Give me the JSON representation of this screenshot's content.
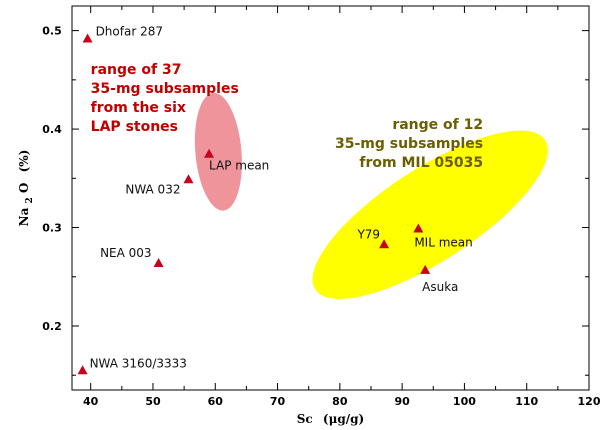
{
  "chart_data": {
    "type": "scatter",
    "xlabel_main": "Sc",
    "xlabel_unit": "(μg/g)",
    "ylabel_parts": [
      "Na",
      "2",
      "O",
      "(%)"
    ],
    "xlim": [
      37,
      120
    ],
    "ylim": [
      0.135,
      0.525
    ],
    "xticks": [
      40,
      50,
      60,
      70,
      80,
      90,
      100,
      110,
      120
    ],
    "yticks": [
      0.2,
      0.3,
      0.4,
      0.5
    ],
    "ytick_labels": [
      "0.2",
      "0.3",
      "0.4",
      "0.5"
    ],
    "marker_color": "#c8001e",
    "points": [
      {
        "label": "Dhofar 287",
        "x": 39.5,
        "y": 0.492
      },
      {
        "label": "LAP mean",
        "x": 59.0,
        "y": 0.375
      },
      {
        "label": "NWA 032",
        "x": 55.7,
        "y": 0.349
      },
      {
        "label": "NEA 003",
        "x": 50.9,
        "y": 0.264
      },
      {
        "label": "NWA 3160/3333",
        "x": 38.7,
        "y": 0.155
      },
      {
        "label": "Y79",
        "x": 87.1,
        "y": 0.283
      },
      {
        "label": "MIL mean",
        "x": 92.6,
        "y": 0.299
      },
      {
        "label": "Asuka",
        "x": 93.7,
        "y": 0.257
      }
    ],
    "regions": [
      {
        "name": "LAP range",
        "color": "#f0949c",
        "cx": 60.5,
        "cy": 0.377,
        "rx": 3.7,
        "ry": 0.06,
        "angle": -5
      },
      {
        "name": "MIL range",
        "color": "#ffff00",
        "cx": 94.5,
        "cy": 0.313,
        "rx": 22.0,
        "ry": 0.047,
        "angle": -33
      }
    ],
    "annotations": [
      {
        "lines": [
          "range of 37",
          "35-mg subsamples",
          "from the six",
          "LAP stones"
        ],
        "color": "#c00000",
        "x": 40.0,
        "y": 0.456,
        "anchor": "start"
      },
      {
        "lines": [
          "range of 12",
          "35-mg subsamples",
          "from MIL 05035"
        ],
        "color": "#6b5f00",
        "x": 103.0,
        "y": 0.4,
        "anchor": "end"
      }
    ]
  }
}
